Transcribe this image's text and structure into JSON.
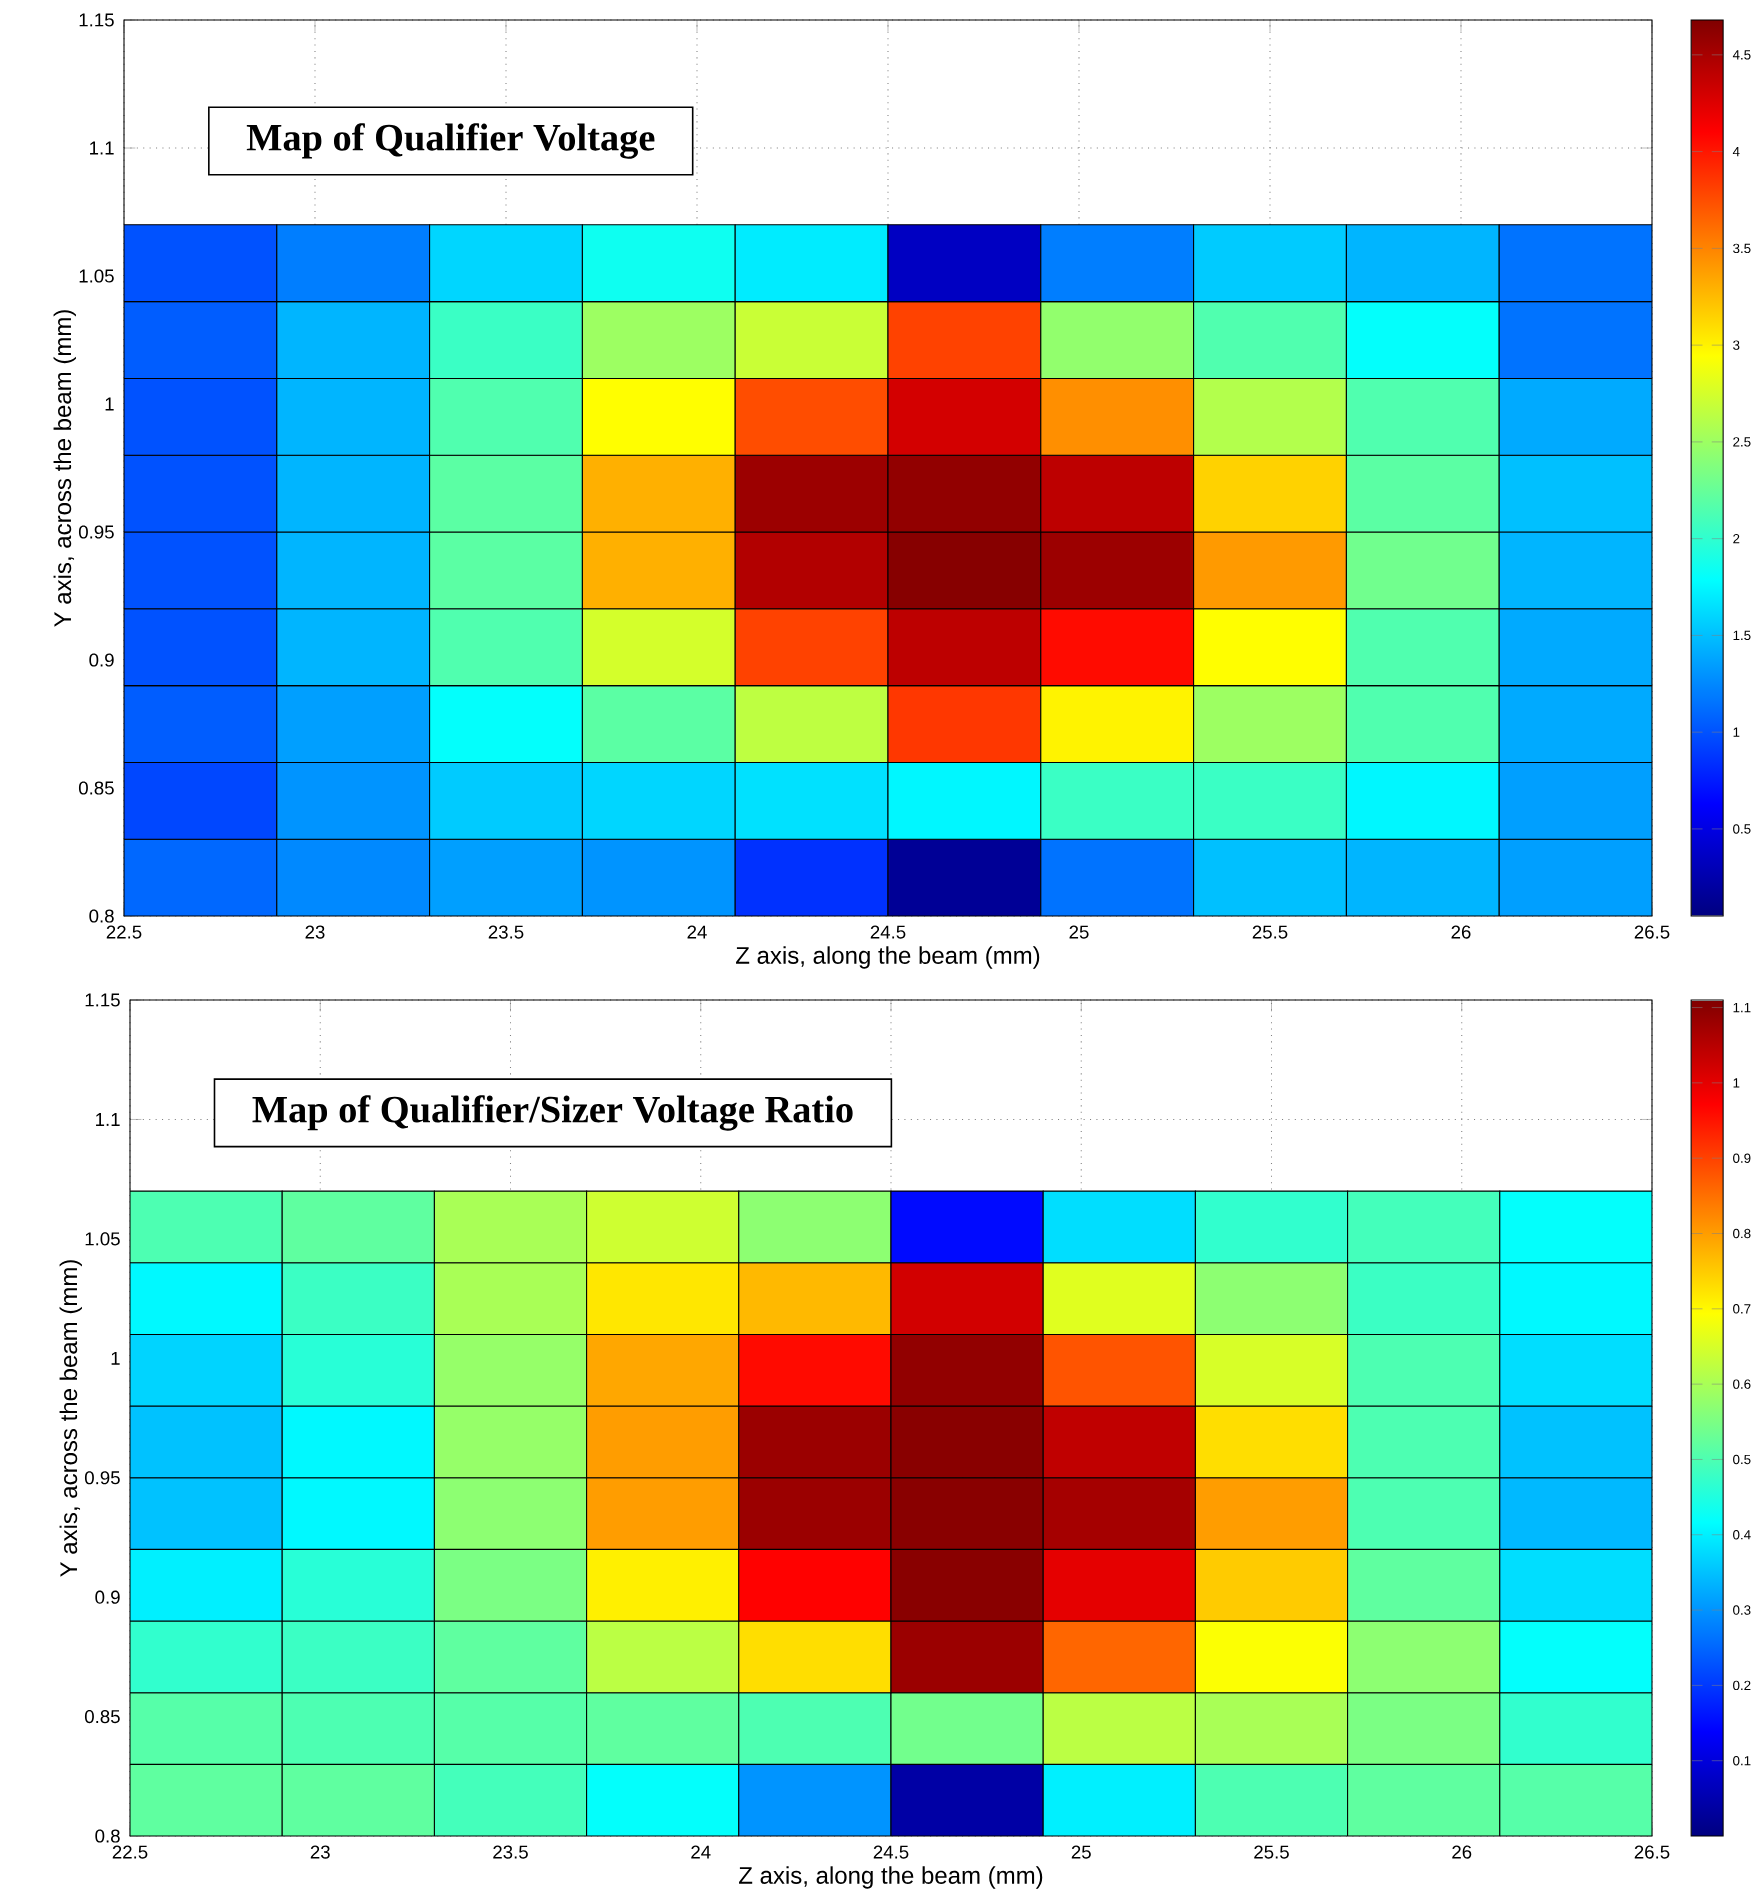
{
  "chart_data": [
    {
      "type": "heatmap",
      "title": "Map of Qualifier Voltage",
      "xlabel": "Z axis, along the beam (mm)",
      "ylabel": "Y axis, across the beam (mm)",
      "x": [
        22.7,
        23.1,
        23.5,
        23.9,
        24.3,
        24.7,
        25.1,
        25.5,
        25.9,
        26.3
      ],
      "y": [
        1.055,
        1.025,
        0.995,
        0.965,
        0.935,
        0.905,
        0.875,
        0.845,
        0.815
      ],
      "cells": [
        [
          1.0,
          1.2,
          1.6,
          1.85,
          1.7,
          0.35,
          1.2,
          1.55,
          1.45,
          1.15
        ],
        [
          1.05,
          1.45,
          2.05,
          2.5,
          2.7,
          3.8,
          2.45,
          2.15,
          1.8,
          1.15
        ],
        [
          1.0,
          1.45,
          2.15,
          2.95,
          3.75,
          4.3,
          3.45,
          2.6,
          2.15,
          1.4
        ],
        [
          1.0,
          1.45,
          2.2,
          3.3,
          4.55,
          4.6,
          4.4,
          3.15,
          2.2,
          1.5
        ],
        [
          1.0,
          1.45,
          2.2,
          3.3,
          4.45,
          4.65,
          4.55,
          3.4,
          2.3,
          1.45
        ],
        [
          1.0,
          1.45,
          2.15,
          2.75,
          3.8,
          4.4,
          4.05,
          2.95,
          2.15,
          1.4
        ],
        [
          1.05,
          1.35,
          1.8,
          2.2,
          2.65,
          3.85,
          3.0,
          2.5,
          2.15,
          1.4
        ],
        [
          0.95,
          1.3,
          1.55,
          1.6,
          1.65,
          1.75,
          2.05,
          2.05,
          1.75,
          1.35
        ],
        [
          1.1,
          1.25,
          1.35,
          1.3,
          0.85,
          0.15,
          1.15,
          1.5,
          1.45,
          1.35
        ]
      ],
      "xlim": [
        22.5,
        26.5
      ],
      "ylim": [
        0.8,
        1.15
      ],
      "xticks": [
        22.5,
        23,
        23.5,
        24,
        24.5,
        25,
        25.5,
        26,
        26.5
      ],
      "yticks": [
        0.8,
        0.85,
        0.9,
        0.95,
        1,
        1.05,
        1.1,
        1.15
      ],
      "clim": [
        0.05,
        4.68
      ],
      "cticks": [
        0.5,
        1,
        1.5,
        2,
        2.5,
        3,
        3.5,
        4,
        4.5
      ],
      "grid": true
    },
    {
      "type": "heatmap",
      "title": "Map of Qualifier/Sizer Voltage Ratio",
      "xlabel": "Z axis, along the beam (mm)",
      "ylabel": "Y axis, across the beam (mm)",
      "x": [
        22.7,
        23.1,
        23.5,
        23.9,
        24.3,
        24.7,
        25.1,
        25.5,
        25.9,
        26.3
      ],
      "y": [
        1.055,
        1.025,
        0.995,
        0.965,
        0.935,
        0.905,
        0.875,
        0.845,
        0.815
      ],
      "cells": [
        [
          0.5,
          0.52,
          0.6,
          0.64,
          0.57,
          0.15,
          0.38,
          0.47,
          0.49,
          0.42
        ],
        [
          0.41,
          0.48,
          0.6,
          0.72,
          0.77,
          1.02,
          0.66,
          0.57,
          0.48,
          0.41
        ],
        [
          0.37,
          0.46,
          0.58,
          0.79,
          0.96,
          1.09,
          0.88,
          0.65,
          0.5,
          0.38
        ],
        [
          0.35,
          0.41,
          0.58,
          0.8,
          1.08,
          1.1,
          1.04,
          0.73,
          0.5,
          0.35
        ],
        [
          0.35,
          0.41,
          0.57,
          0.8,
          1.08,
          1.1,
          1.07,
          0.8,
          0.5,
          0.34
        ],
        [
          0.4,
          0.46,
          0.55,
          0.71,
          0.97,
          1.1,
          1.0,
          0.75,
          0.52,
          0.38
        ],
        [
          0.47,
          0.48,
          0.52,
          0.62,
          0.73,
          1.08,
          0.86,
          0.69,
          0.57,
          0.42
        ],
        [
          0.51,
          0.5,
          0.51,
          0.52,
          0.5,
          0.54,
          0.62,
          0.6,
          0.55,
          0.47
        ],
        [
          0.52,
          0.52,
          0.49,
          0.42,
          0.3,
          0.04,
          0.4,
          0.5,
          0.52,
          0.51
        ]
      ],
      "xlim": [
        22.5,
        26.5
      ],
      "ylim": [
        0.8,
        1.15
      ],
      "xticks": [
        22.5,
        23,
        23.5,
        24,
        24.5,
        25,
        25.5,
        26,
        26.5
      ],
      "yticks": [
        0.8,
        0.85,
        0.9,
        0.95,
        1,
        1.05,
        1.1,
        1.15
      ],
      "clim": [
        0.0,
        1.11
      ],
      "cticks": [
        0.1,
        0.2,
        0.3,
        0.4,
        0.5,
        0.6,
        0.7,
        0.8,
        0.9,
        1,
        1.1
      ],
      "grid": true
    }
  ]
}
